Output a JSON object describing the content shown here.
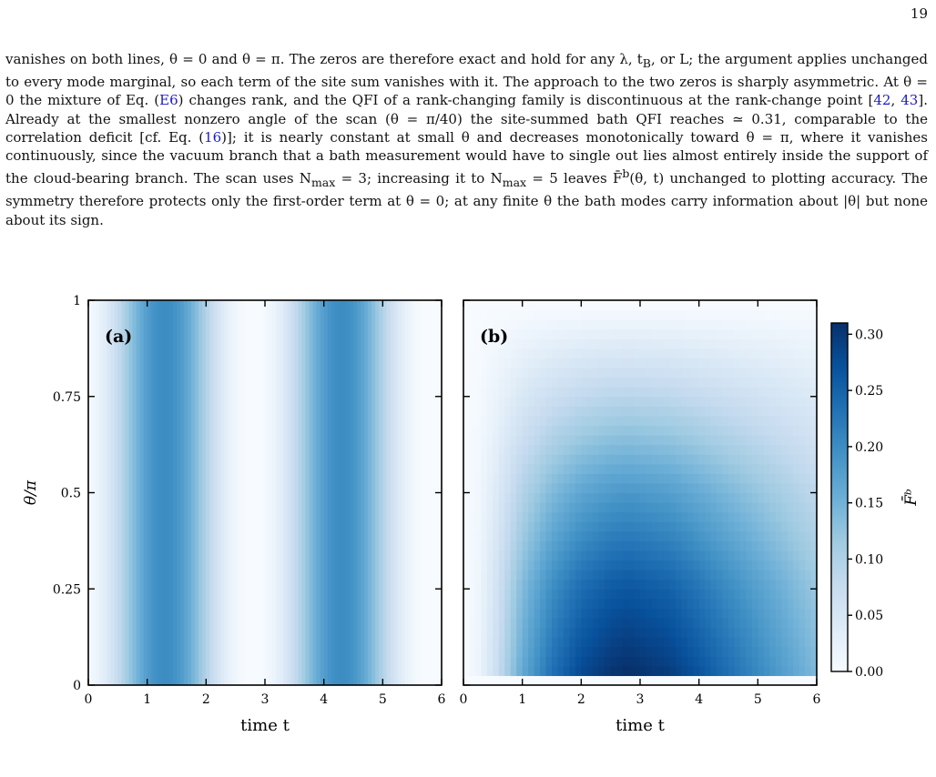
{
  "page": {
    "number": "19"
  },
  "text": {
    "s1": "vanishes on both lines, θ = 0 and θ = π. The zeros are therefore exact and hold for any λ, t",
    "s1_sub": "B",
    "s2": ", or L; the argument applies unchanged to every mode marginal, so each term of the site sum vanishes with it. The approach to the two zeros is sharply asymmetric. At θ = 0 the mixture of Eq. (",
    "ref_e6": "E6",
    "s3": ") changes rank, and the QFI of a rank-changing family is discontinuous at the rank-change point [",
    "ref_42": "42",
    "comma": ", ",
    "ref_43": "43",
    "s4": "]. Already at the smallest nonzero angle of the scan (θ = π/40) the site-summed bath QFI reaches ≃ 0.31, comparable to the correlation deficit [cf. Eq. (",
    "ref_16": "16",
    "s5": ")]; it is nearly constant at small θ and decreases monotonically toward θ = π, where it vanishes continuously, since the vacuum branch that a bath measurement would have to single out lies almost entirely inside the support of the cloud-bearing branch. The scan uses N",
    "nmax_sub_1": "max",
    "s6": " = 3; increasing it to N",
    "nmax_sub_2": "max",
    "s7": " = 5 leaves ",
    "fbar": "F̄",
    "fbar_sup": "b",
    "s8": "(θ, t) unchanged to plotting accuracy. The symmetry therefore protects only the first-order term at θ = 0; at any finite θ the bath modes carry information about |θ| but none about its sign."
  },
  "colors": {
    "cmap": [
      "#f7fbff",
      "#deebf7",
      "#c6dbef",
      "#9ecae1",
      "#6baed6",
      "#4292c6",
      "#2171b5",
      "#08519c",
      "#08306b"
    ],
    "link": "#1a1acc"
  },
  "chart_data": [
    {
      "type": "heatmap",
      "panel_label": "(a)",
      "xlabel": "time t",
      "ylabel": "θ/π",
      "xlim": [
        0,
        6
      ],
      "ylim": [
        0,
        1
      ],
      "xticks": [
        "0",
        "1",
        "2",
        "3",
        "4",
        "5",
        "6"
      ],
      "yticks": [
        "0",
        "0.25",
        "0.5",
        "0.75",
        "1"
      ],
      "model": "value depends on t only; periodic with period ≈ 3 in t, peaking near t ≈ 1.3 and t ≈ 4.3",
      "period": 3.0,
      "peak_times": [
        1.3,
        4.3
      ],
      "peak_value": 0.2,
      "columns_t": [
        0,
        0.25,
        0.5,
        0.75,
        1.0,
        1.25,
        1.5,
        1.75,
        2.0,
        2.25,
        2.5,
        2.75,
        3.0,
        3.25,
        3.5,
        3.75,
        4.0,
        4.25,
        4.5,
        4.75,
        5.0,
        5.25,
        5.5,
        5.75,
        6.0
      ],
      "columns_value": [
        0.0,
        0.01,
        0.05,
        0.12,
        0.18,
        0.2,
        0.2,
        0.18,
        0.12,
        0.05,
        0.01,
        0.0,
        0.0,
        0.01,
        0.05,
        0.12,
        0.18,
        0.2,
        0.2,
        0.18,
        0.12,
        0.05,
        0.01,
        0.0,
        0.0
      ]
    },
    {
      "type": "heatmap",
      "panel_label": "(b)",
      "xlabel": "time t",
      "ylabel": "",
      "xlim": [
        0,
        6
      ],
      "ylim": [
        0,
        1
      ],
      "xticks": [
        "0",
        "1",
        "2",
        "3",
        "4",
        "5",
        "6"
      ],
      "yticks": [],
      "theta_rows": 40,
      "theta_zero_value": 0.0,
      "model": "value(θ,t) ≈ A(θ)·g(t); maximum ≈ 0.31 at t ≈ 2.8 for smallest nonzero θ; decreases with θ, vanishing at θ = π; zero at θ = 0 row",
      "amplitude_by_theta_frac": [
        [
          0.025,
          1.0
        ],
        [
          0.25,
          0.85
        ],
        [
          0.5,
          0.6
        ],
        [
          0.75,
          0.3
        ],
        [
          0.9,
          0.12
        ],
        [
          1.0,
          0.0
        ]
      ],
      "time_profile": [
        [
          0.0,
          0.0
        ],
        [
          0.25,
          0.05
        ],
        [
          0.5,
          0.18
        ],
        [
          0.75,
          0.35
        ],
        [
          1.0,
          0.52
        ],
        [
          1.5,
          0.75
        ],
        [
          2.0,
          0.9
        ],
        [
          2.5,
          0.98
        ],
        [
          2.8,
          1.0
        ],
        [
          3.5,
          0.95
        ],
        [
          4.0,
          0.86
        ],
        [
          5.0,
          0.66
        ],
        [
          6.0,
          0.45
        ]
      ],
      "max_value": 0.31,
      "colorbar": {
        "label": "F̄ᵇ",
        "ticks": [
          "0.00",
          "0.05",
          "0.10",
          "0.15",
          "0.20",
          "0.25",
          "0.30"
        ],
        "range": [
          0,
          0.31
        ]
      }
    }
  ]
}
